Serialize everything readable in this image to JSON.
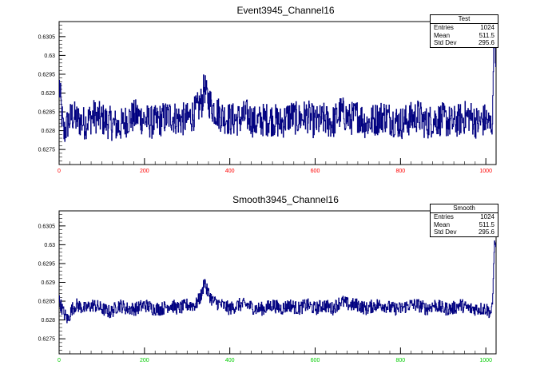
{
  "chart_data": [
    {
      "type": "line",
      "title": "Event3945_Channel16",
      "xlabel": "",
      "ylabel": "",
      "xlim": [
        0,
        1024
      ],
      "ylim": [
        0.6271,
        0.6309
      ],
      "yticks": [
        "0.6275",
        "0.628",
        "0.6285",
        "0.629",
        "0.6295",
        "0.63",
        "0.6305"
      ],
      "xticks": [
        "0",
        "200",
        "400",
        "600",
        "800",
        "1000"
      ],
      "xtick_color": "#ff0000",
      "line_color": "#000080",
      "series": [
        {
          "points": [
            [
              0,
              0.6292
            ],
            [
              10,
              0.6279
            ],
            [
              20,
              0.6282
            ],
            [
              30,
              0.6284
            ],
            [
              40,
              0.6283
            ],
            [
              60,
              0.6282
            ],
            [
              80,
              0.6284
            ],
            [
              100,
              0.6283
            ],
            [
              120,
              0.6282
            ],
            [
              140,
              0.6281
            ],
            [
              160,
              0.6283
            ],
            [
              180,
              0.6284
            ],
            [
              200,
              0.6283
            ],
            [
              220,
              0.6282
            ],
            [
              240,
              0.6283
            ],
            [
              260,
              0.6284
            ],
            [
              280,
              0.6283
            ],
            [
              300,
              0.6283
            ],
            [
              320,
              0.6285
            ],
            [
              335,
              0.6288
            ],
            [
              340,
              0.6292
            ],
            [
              345,
              0.6289
            ],
            [
              360,
              0.6286
            ],
            [
              380,
              0.6284
            ],
            [
              400,
              0.6283
            ],
            [
              420,
              0.6283
            ],
            [
              440,
              0.6284
            ],
            [
              460,
              0.6282
            ],
            [
              480,
              0.6283
            ],
            [
              500,
              0.6283
            ],
            [
              520,
              0.6282
            ],
            [
              540,
              0.6284
            ],
            [
              560,
              0.6283
            ],
            [
              580,
              0.6284
            ],
            [
              600,
              0.6282
            ],
            [
              620,
              0.6283
            ],
            [
              640,
              0.6282
            ],
            [
              660,
              0.6285
            ],
            [
              680,
              0.6283
            ],
            [
              700,
              0.6284
            ],
            [
              720,
              0.6282
            ],
            [
              740,
              0.6283
            ],
            [
              760,
              0.6284
            ],
            [
              780,
              0.6283
            ],
            [
              800,
              0.6282
            ],
            [
              820,
              0.6283
            ],
            [
              840,
              0.6284
            ],
            [
              860,
              0.6282
            ],
            [
              880,
              0.6283
            ],
            [
              900,
              0.6283
            ],
            [
              920,
              0.6282
            ],
            [
              940,
              0.6283
            ],
            [
              960,
              0.6284
            ],
            [
              980,
              0.6282
            ],
            [
              1000,
              0.6283
            ],
            [
              1010,
              0.6281
            ],
            [
              1015,
              0.6283
            ],
            [
              1018,
              0.6302
            ],
            [
              1020,
              0.631
            ],
            [
              1022,
              0.6298
            ],
            [
              1024,
              0.6296
            ]
          ]
        }
      ],
      "stats": {
        "name": "Test",
        "rows": [
          {
            "label": "Entries",
            "value": "1024"
          },
          {
            "label": "Mean",
            "value": "511.5"
          },
          {
            "label": "Std Dev",
            "value": "295.6"
          }
        ]
      }
    },
    {
      "type": "line",
      "title": "Smooth3945_Channel16",
      "xlabel": "",
      "ylabel": "",
      "xlim": [
        0,
        1024
      ],
      "ylim": [
        0.6271,
        0.6309
      ],
      "yticks": [
        "0.6275",
        "0.628",
        "0.6285",
        "0.629",
        "0.6295",
        "0.63",
        "0.6305"
      ],
      "xticks": [
        "0",
        "200",
        "400",
        "600",
        "800",
        "1000"
      ],
      "xtick_color": "#00cc00",
      "line_color": "#000080",
      "series": [
        {
          "points": [
            [
              0,
              0.6285
            ],
            [
              10,
              0.6282
            ],
            [
              20,
              0.628
            ],
            [
              30,
              0.6283
            ],
            [
              40,
              0.6284
            ],
            [
              60,
              0.6283
            ],
            [
              80,
              0.6284
            ],
            [
              100,
              0.6283
            ],
            [
              120,
              0.6282
            ],
            [
              140,
              0.6284
            ],
            [
              160,
              0.6283
            ],
            [
              180,
              0.6283
            ],
            [
              200,
              0.6284
            ],
            [
              220,
              0.6283
            ],
            [
              240,
              0.6283
            ],
            [
              260,
              0.6284
            ],
            [
              280,
              0.6283
            ],
            [
              300,
              0.6284
            ],
            [
              320,
              0.6284
            ],
            [
              335,
              0.6287
            ],
            [
              340,
              0.6291
            ],
            [
              345,
              0.6288
            ],
            [
              360,
              0.6285
            ],
            [
              380,
              0.6284
            ],
            [
              400,
              0.6283
            ],
            [
              420,
              0.6284
            ],
            [
              440,
              0.6284
            ],
            [
              460,
              0.6283
            ],
            [
              480,
              0.6283
            ],
            [
              500,
              0.6284
            ],
            [
              520,
              0.6283
            ],
            [
              540,
              0.6284
            ],
            [
              560,
              0.6283
            ],
            [
              580,
              0.6284
            ],
            [
              600,
              0.6283
            ],
            [
              620,
              0.6284
            ],
            [
              640,
              0.6283
            ],
            [
              660,
              0.6285
            ],
            [
              680,
              0.6284
            ],
            [
              700,
              0.6284
            ],
            [
              720,
              0.6283
            ],
            [
              740,
              0.6284
            ],
            [
              760,
              0.6284
            ],
            [
              780,
              0.6283
            ],
            [
              800,
              0.6283
            ],
            [
              820,
              0.6284
            ],
            [
              840,
              0.6284
            ],
            [
              860,
              0.6283
            ],
            [
              880,
              0.6284
            ],
            [
              900,
              0.6283
            ],
            [
              920,
              0.6283
            ],
            [
              940,
              0.6284
            ],
            [
              960,
              0.6283
            ],
            [
              980,
              0.6283
            ],
            [
              1000,
              0.6283
            ],
            [
              1010,
              0.6282
            ],
            [
              1015,
              0.6283
            ],
            [
              1018,
              0.6295
            ],
            [
              1020,
              0.6301
            ],
            [
              1022,
              0.63
            ],
            [
              1024,
              0.6299
            ]
          ]
        }
      ],
      "stats": {
        "name": "Smooth",
        "rows": [
          {
            "label": "Entries",
            "value": "1024"
          },
          {
            "label": "Mean",
            "value": "511.5"
          },
          {
            "label": "Std Dev",
            "value": "295.6"
          }
        ]
      }
    }
  ]
}
